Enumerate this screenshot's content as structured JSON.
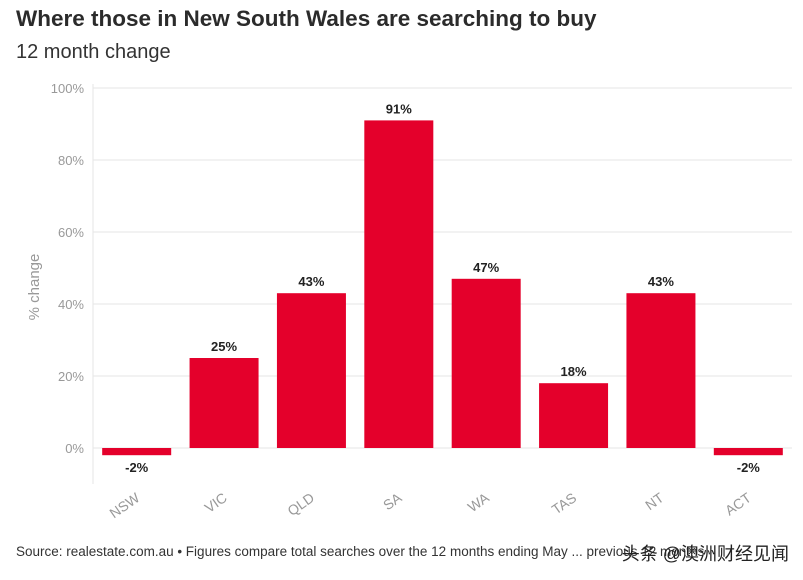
{
  "header": {
    "title": "Where those in New South Wales are searching to buy",
    "subtitle": "12 month change"
  },
  "chart_data": {
    "type": "bar",
    "title": "Where those in New South Wales are searching to buy",
    "subtitle": "12 month change",
    "categories": [
      "NSW",
      "VIC",
      "QLD",
      "SA",
      "WA",
      "TAS",
      "NT",
      "ACT"
    ],
    "values": [
      -2,
      25,
      43,
      91,
      47,
      18,
      43,
      -2
    ],
    "data_labels": [
      "-2%",
      "25%",
      "43%",
      "91%",
      "47%",
      "18%",
      "43%",
      "-2%"
    ],
    "xlabel": "",
    "ylabel": "% change",
    "ylim": [
      -10,
      100
    ],
    "yticks": [
      0,
      20,
      40,
      60,
      80,
      100
    ],
    "ytick_labels": [
      "0%",
      "20%",
      "40%",
      "60%",
      "80%",
      "100%"
    ],
    "grid": true,
    "bar_color": "#e4002b"
  },
  "footer": {
    "source": "Source: realestate.com.au • Figures compare total searches over the 12 months ending May ... previous 12 months"
  },
  "watermark": {
    "text": "头条 @澳洲财经见闻"
  },
  "colors": {
    "bar": "#e4002b",
    "grid": "#e6e6e6",
    "axis_text": "#999999",
    "title_text": "#2b2b2b"
  }
}
